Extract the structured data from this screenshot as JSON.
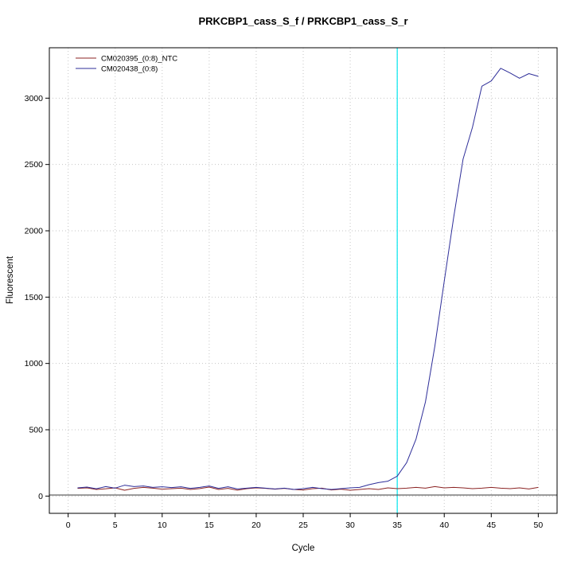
{
  "title": "PRKCBP1_cass_S_f / PRKCBP1_cass_S_r",
  "chart_data": {
    "type": "line",
    "xlabel": "Cycle",
    "ylabel": "Fluorescent",
    "xlim": [
      0,
      50
    ],
    "ylim": [
      0,
      3250
    ],
    "xticks": [
      0,
      5,
      10,
      15,
      20,
      25,
      30,
      35,
      40,
      45,
      50
    ],
    "yticks": [
      0,
      500,
      1000,
      1500,
      2000,
      2500,
      3000
    ],
    "grid": true,
    "grid_color": "#c6c6c6",
    "legend_position": "top-left",
    "threshold": {
      "x": 35,
      "color": "#00e5ee"
    },
    "baseline": {
      "y": 8,
      "color": "#3a3a3a"
    },
    "x_start": 1,
    "series": [
      {
        "name": "CM020395_(0:8)_NTC",
        "color": "#8b2323",
        "values": [
          58,
          62,
          50,
          55,
          62,
          44,
          58,
          66,
          60,
          52,
          56,
          60,
          50,
          57,
          68,
          50,
          58,
          45,
          56,
          62,
          58,
          52,
          58,
          50,
          46,
          56,
          60,
          46,
          52,
          44,
          50,
          56,
          50,
          62,
          56,
          60,
          66,
          60,
          72,
          62,
          66,
          62,
          56,
          60,
          66,
          60,
          56,
          62,
          54,
          66
        ]
      },
      {
        "name": "CM020438_(0:8)",
        "color": "#2e2e99",
        "values": [
          62,
          68,
          55,
          72,
          60,
          82,
          72,
          76,
          66,
          70,
          64,
          70,
          58,
          66,
          76,
          58,
          70,
          54,
          60,
          66,
          60,
          54,
          60,
          50,
          56,
          66,
          56,
          50,
          56,
          62,
          66,
          86,
          102,
          112,
          150,
          252,
          430,
          710,
          1130,
          1620,
          2100,
          2540,
          2780,
          3090,
          3130,
          3225,
          3190,
          3150,
          3185,
          3165
        ]
      }
    ]
  }
}
